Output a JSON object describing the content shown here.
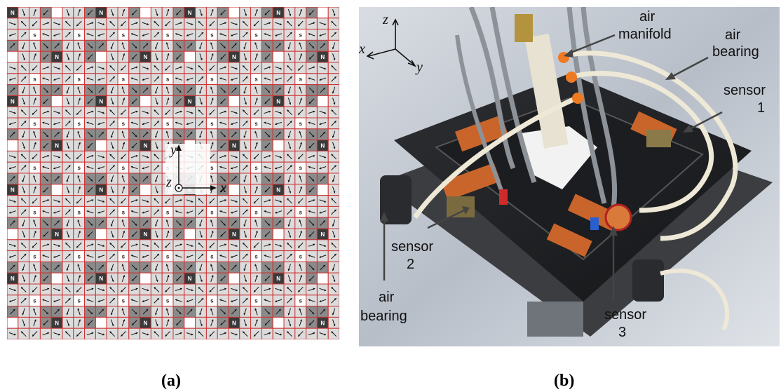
{
  "panel_a": {
    "caption": "(a)",
    "pole_labels": {
      "north": "N",
      "south": "s"
    },
    "axes": {
      "x": "x",
      "y": "y",
      "z": "z"
    },
    "colors": {
      "grid_line": "#cc3333",
      "north_cell": "#3a3a3a",
      "dark_cell": "#8a8a8a",
      "light_cell": "#dcdcdc",
      "south_cell": "#ffffff",
      "arrow": "#111111"
    }
  },
  "panel_b": {
    "caption": "(b)",
    "axes": {
      "x": "x",
      "y": "y",
      "z": "z"
    },
    "labels": {
      "air_manifold": [
        "air",
        "manifold"
      ],
      "air_bearing_top": [
        "air",
        "bearing"
      ],
      "sensor_1": [
        "sensor",
        "1"
      ],
      "sensor_2": [
        "sensor",
        "2"
      ],
      "sensor_3": [
        "sensor",
        "3"
      ],
      "air_bearing_bottom": [
        "air",
        "bearing"
      ]
    }
  }
}
